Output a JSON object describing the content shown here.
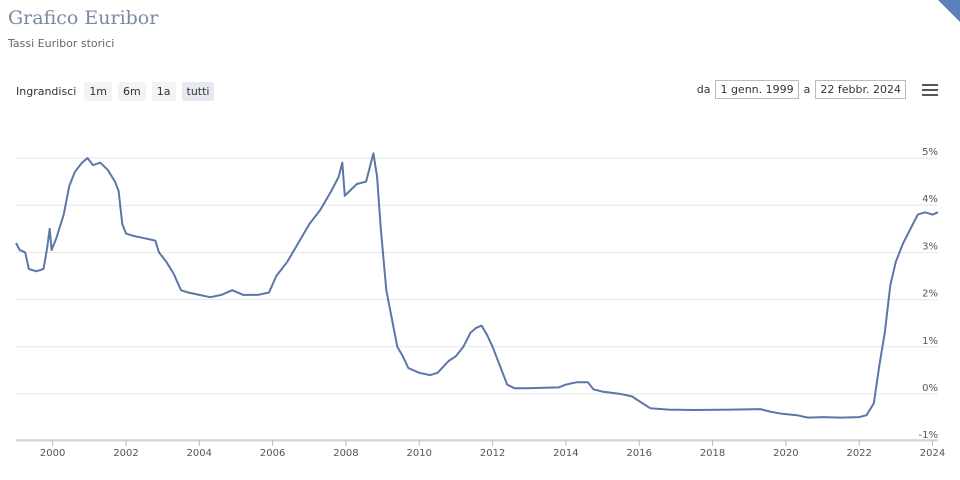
{
  "header": {
    "title": "Grafico Euribor",
    "subtitle": "Tassi Euribor storici"
  },
  "zoom": {
    "label": "Ingrandisci",
    "buttons": [
      "1m",
      "6m",
      "1a",
      "tutti"
    ],
    "active": "tutti"
  },
  "range": {
    "from_label": "da",
    "from_value": "1 genn. 1999",
    "to_label": "a",
    "to_value": "22 febbr. 2024"
  },
  "colors": {
    "line": "#5b76a8",
    "grid": "#e6e6e6",
    "accent": "#5b7fb8"
  },
  "chart_data": {
    "type": "line",
    "title": "",
    "xlabel": "",
    "ylabel": "",
    "xlim": [
      1999.0,
      2024.15
    ],
    "ylim": [
      -1,
      5
    ],
    "x_ticks": [
      "2000",
      "2002",
      "2004",
      "2006",
      "2008",
      "2010",
      "2012",
      "2014",
      "2016",
      "2018",
      "2020",
      "2022",
      "2024"
    ],
    "y_ticks": [
      "5%",
      "4%",
      "3%",
      "2%",
      "1%",
      "0%",
      "-1%"
    ],
    "grid": true,
    "series": [
      {
        "points": [
          [
            1999.0,
            3.2
          ],
          [
            1999.1,
            3.05
          ],
          [
            1999.25,
            3.0
          ],
          [
            1999.35,
            2.65
          ],
          [
            1999.55,
            2.6
          ],
          [
            1999.75,
            2.65
          ],
          [
            1999.85,
            3.1
          ],
          [
            1999.92,
            3.5
          ],
          [
            1999.97,
            3.05
          ],
          [
            2000.1,
            3.3
          ],
          [
            2000.3,
            3.8
          ],
          [
            2000.45,
            4.4
          ],
          [
            2000.6,
            4.7
          ],
          [
            2000.8,
            4.9
          ],
          [
            2000.95,
            5.0
          ],
          [
            2001.1,
            4.85
          ],
          [
            2001.3,
            4.9
          ],
          [
            2001.5,
            4.75
          ],
          [
            2001.7,
            4.5
          ],
          [
            2001.8,
            4.3
          ],
          [
            2001.9,
            3.6
          ],
          [
            2002.0,
            3.4
          ],
          [
            2002.2,
            3.35
          ],
          [
            2002.5,
            3.3
          ],
          [
            2002.8,
            3.25
          ],
          [
            2002.9,
            3.0
          ],
          [
            2003.1,
            2.8
          ],
          [
            2003.3,
            2.55
          ],
          [
            2003.5,
            2.2
          ],
          [
            2003.7,
            2.15
          ],
          [
            2004.0,
            2.1
          ],
          [
            2004.3,
            2.05
          ],
          [
            2004.6,
            2.1
          ],
          [
            2004.9,
            2.2
          ],
          [
            2005.2,
            2.1
          ],
          [
            2005.6,
            2.1
          ],
          [
            2005.9,
            2.15
          ],
          [
            2006.1,
            2.5
          ],
          [
            2006.4,
            2.8
          ],
          [
            2006.7,
            3.2
          ],
          [
            2007.0,
            3.6
          ],
          [
            2007.3,
            3.9
          ],
          [
            2007.6,
            4.3
          ],
          [
            2007.8,
            4.6
          ],
          [
            2007.9,
            4.9
          ],
          [
            2007.97,
            4.2
          ],
          [
            2008.1,
            4.3
          ],
          [
            2008.3,
            4.45
          ],
          [
            2008.55,
            4.5
          ],
          [
            2008.75,
            5.1
          ],
          [
            2008.85,
            4.6
          ],
          [
            2008.95,
            3.5
          ],
          [
            2009.1,
            2.2
          ],
          [
            2009.25,
            1.6
          ],
          [
            2009.4,
            1.0
          ],
          [
            2009.55,
            0.8
          ],
          [
            2009.7,
            0.55
          ],
          [
            2010.0,
            0.45
          ],
          [
            2010.3,
            0.4
          ],
          [
            2010.5,
            0.45
          ],
          [
            2010.8,
            0.7
          ],
          [
            2011.0,
            0.8
          ],
          [
            2011.2,
            1.0
          ],
          [
            2011.4,
            1.3
          ],
          [
            2011.55,
            1.4
          ],
          [
            2011.7,
            1.45
          ],
          [
            2011.85,
            1.25
          ],
          [
            2012.0,
            1.0
          ],
          [
            2012.2,
            0.6
          ],
          [
            2012.4,
            0.2
          ],
          [
            2012.6,
            0.12
          ],
          [
            2012.9,
            0.12
          ],
          [
            2013.3,
            0.13
          ],
          [
            2013.8,
            0.14
          ],
          [
            2014.0,
            0.2
          ],
          [
            2014.3,
            0.25
          ],
          [
            2014.6,
            0.25
          ],
          [
            2014.75,
            0.1
          ],
          [
            2015.0,
            0.05
          ],
          [
            2015.5,
            0.0
          ],
          [
            2015.8,
            -0.05
          ],
          [
            2016.0,
            -0.15
          ],
          [
            2016.3,
            -0.3
          ],
          [
            2016.8,
            -0.33
          ],
          [
            2017.5,
            -0.34
          ],
          [
            2018.5,
            -0.33
          ],
          [
            2019.3,
            -0.32
          ],
          [
            2019.6,
            -0.38
          ],
          [
            2019.9,
            -0.42
          ],
          [
            2020.3,
            -0.45
          ],
          [
            2020.6,
            -0.5
          ],
          [
            2021.0,
            -0.49
          ],
          [
            2021.5,
            -0.5
          ],
          [
            2022.0,
            -0.49
          ],
          [
            2022.2,
            -0.45
          ],
          [
            2022.4,
            -0.2
          ],
          [
            2022.55,
            0.6
          ],
          [
            2022.7,
            1.3
          ],
          [
            2022.85,
            2.3
          ],
          [
            2023.0,
            2.8
          ],
          [
            2023.2,
            3.2
          ],
          [
            2023.4,
            3.5
          ],
          [
            2023.6,
            3.8
          ],
          [
            2023.8,
            3.85
          ],
          [
            2024.0,
            3.8
          ],
          [
            2024.15,
            3.85
          ]
        ]
      }
    ]
  }
}
